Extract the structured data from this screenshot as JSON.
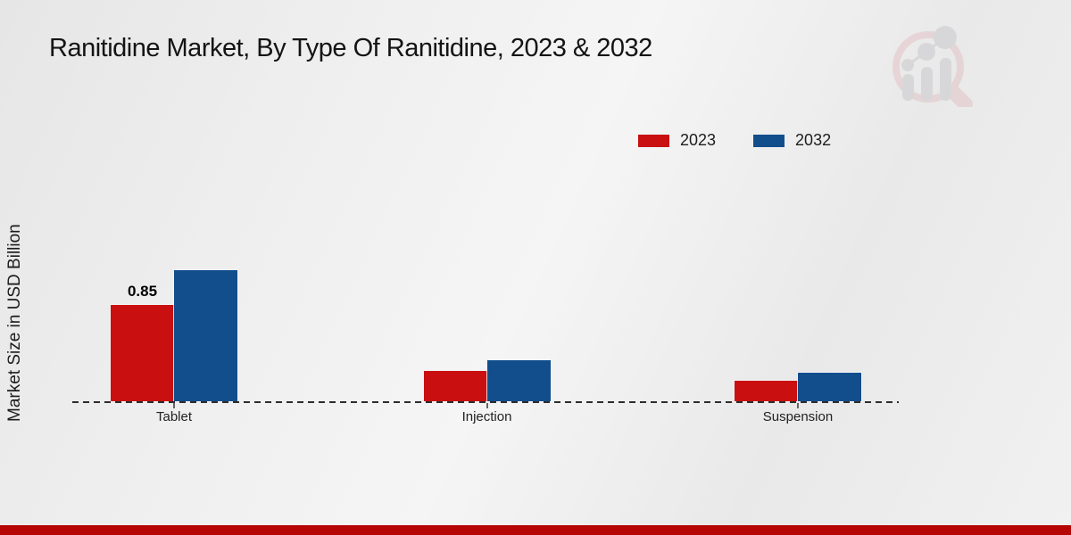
{
  "page": {
    "title": "Ranitidine Market, By Type Of Ranitidine, 2023 & 2032"
  },
  "y_axis_label": "Market Size in USD Billion",
  "legend": [
    {
      "label": "2023",
      "color": "#c90f0f"
    },
    {
      "label": "2032",
      "color": "#124e8c"
    }
  ],
  "chart_data": {
    "type": "bar",
    "title": "Ranitidine Market, By Type Of Ranitidine, 2023 & 2032",
    "categories": [
      "Tablet",
      "Injection",
      "Suspension"
    ],
    "series": [
      {
        "name": "2023",
        "color": "#c90f0f",
        "values": [
          0.85,
          0.27,
          0.18
        ]
      },
      {
        "name": "2032",
        "color": "#124e8c",
        "values": [
          1.15,
          0.36,
          0.25
        ]
      }
    ],
    "bar_labels": [
      {
        "category": "Tablet",
        "series": "2023",
        "text": "0.85"
      }
    ],
    "xlabel": "",
    "ylabel": "Market Size in USD Billion",
    "ylim": [
      0,
      1.25
    ],
    "grid": false,
    "axis_style": "dashed-baseline-only",
    "legend_position": "top-right"
  },
  "colors": {
    "footer_bar": "#b50505",
    "background": "#efefef",
    "axis": "#2d2d2d"
  },
  "watermark": {
    "name": "magnifier-bar-trend-logo"
  }
}
